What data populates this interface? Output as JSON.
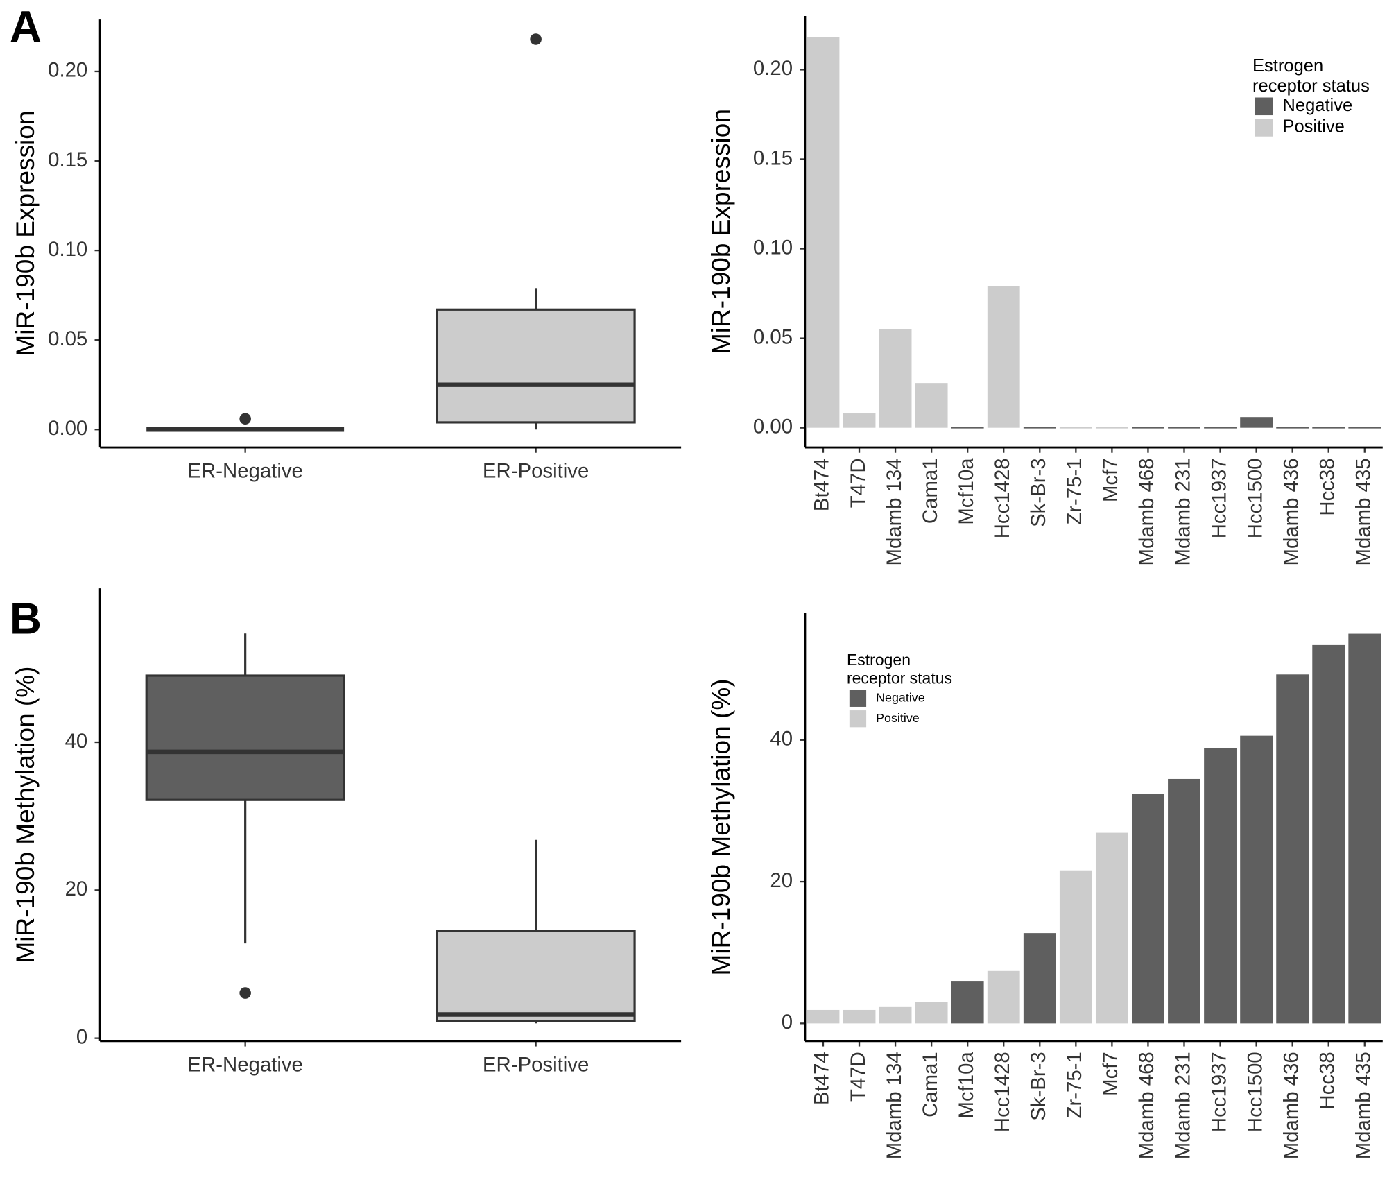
{
  "chart_data": [
    {
      "type": "box",
      "label": "A",
      "y_label": "MiR-190b Expression",
      "categories": [
        "ER-Negative",
        "ER-Positive"
      ],
      "colors": [
        "#5f5f5f",
        "#cccccc"
      ],
      "boxes": [
        {
          "min": 0,
          "q1": 0,
          "median": 0,
          "q3": 0,
          "max": 0,
          "outliers": [
            0.006
          ]
        },
        {
          "min": 0,
          "q1": 0.004,
          "median": 0.025,
          "q3": 0.067,
          "max": 0.079,
          "outliers": [
            0.218
          ]
        }
      ],
      "ylim": [
        -0.01,
        0.229
      ],
      "yticks": [
        {
          "value": 0,
          "label": "0.00"
        },
        0.05,
        {
          "value": 0.1,
          "label": "0.10"
        },
        0.15,
        {
          "value": 0.2,
          "label": "0.20"
        }
      ]
    },
    {
      "type": "bar",
      "y_label": "MiR-190b Expression",
      "legend_title": "Estrogen\nreceptor status",
      "legend_position": "top-right",
      "categories": [
        "Bt474",
        "T47D",
        "Mdamb 134",
        "Cama1",
        "Mcf10a",
        "Hcc1428",
        "Sk-Br-3",
        "Zr-75-1",
        "Mcf7",
        "Mdamb 468",
        "Mdamb 231",
        "Hcc1937",
        "Hcc1500",
        "Mdamb 436",
        "Hcc38",
        "Mdamb 435"
      ],
      "series": [
        {
          "name": "Negative",
          "color": "#5f5f5f",
          "values": [
            null,
            null,
            null,
            null,
            0,
            null,
            0,
            null,
            null,
            0,
            0,
            0,
            0.006,
            0,
            0,
            0
          ]
        },
        {
          "name": "Positive",
          "color": "#cccccc",
          "values": [
            0.218,
            0.008,
            0.055,
            0.025,
            null,
            0.079,
            null,
            0,
            0,
            null,
            null,
            null,
            null,
            null,
            null,
            null
          ]
        }
      ],
      "ylim": [
        -0.011,
        0.23
      ],
      "yticks": [
        {
          "value": 0,
          "label": "0.00"
        },
        0.05,
        {
          "value": 0.1,
          "label": "0.10"
        },
        0.15,
        {
          "value": 0.2,
          "label": "0.20"
        }
      ]
    },
    {
      "type": "box",
      "label": "B",
      "y_label": "MiR-190b Methylation (%)",
      "categories": [
        "ER-Negative",
        "ER-Positive"
      ],
      "colors": [
        "#5f5f5f",
        "#cccccc"
      ],
      "boxes": [
        {
          "min": 12.8,
          "q1": 32.2,
          "median": 38.7,
          "q3": 49.0,
          "max": 54.7,
          "outliers": [
            6.1
          ]
        },
        {
          "min": 2.0,
          "q1": 2.3,
          "median": 3.2,
          "q3": 14.5,
          "max": 26.8,
          "outliers": []
        }
      ],
      "ylim": [
        -0.4,
        60.8
      ],
      "yticks": [
        0,
        20,
        40
      ]
    },
    {
      "type": "bar",
      "y_label": "MiR-190b Methylation (%)",
      "legend_title": "Estrogen\nreceptor status",
      "legend_position": "top-left",
      "categories": [
        "Bt474",
        "T47D",
        "Mdamb 134",
        "Cama1",
        "Mcf10a",
        "Hcc1428",
        "Sk-Br-3",
        "Zr-75-1",
        "Mcf7",
        "Mdamb 468",
        "Mdamb 231",
        "Hcc1937",
        "Hcc1500",
        "Mdamb 436",
        "Hcc38",
        "Mdamb 435"
      ],
      "series": [
        {
          "name": "Negative",
          "color": "#5f5f5f",
          "values": [
            null,
            null,
            null,
            null,
            6.0,
            null,
            12.75,
            null,
            null,
            32.4,
            34.5,
            38.9,
            40.6,
            49.25,
            53.4,
            55.0
          ]
        },
        {
          "name": "Positive",
          "color": "#cccccc",
          "values": [
            1.9,
            1.9,
            2.4,
            3.0,
            null,
            7.4,
            null,
            21.6,
            26.9,
            null,
            null,
            null,
            null,
            null,
            null,
            null
          ]
        }
      ],
      "ylim": [
        -2.5,
        57.9
      ],
      "yticks": [
        0,
        20,
        40
      ]
    }
  ]
}
